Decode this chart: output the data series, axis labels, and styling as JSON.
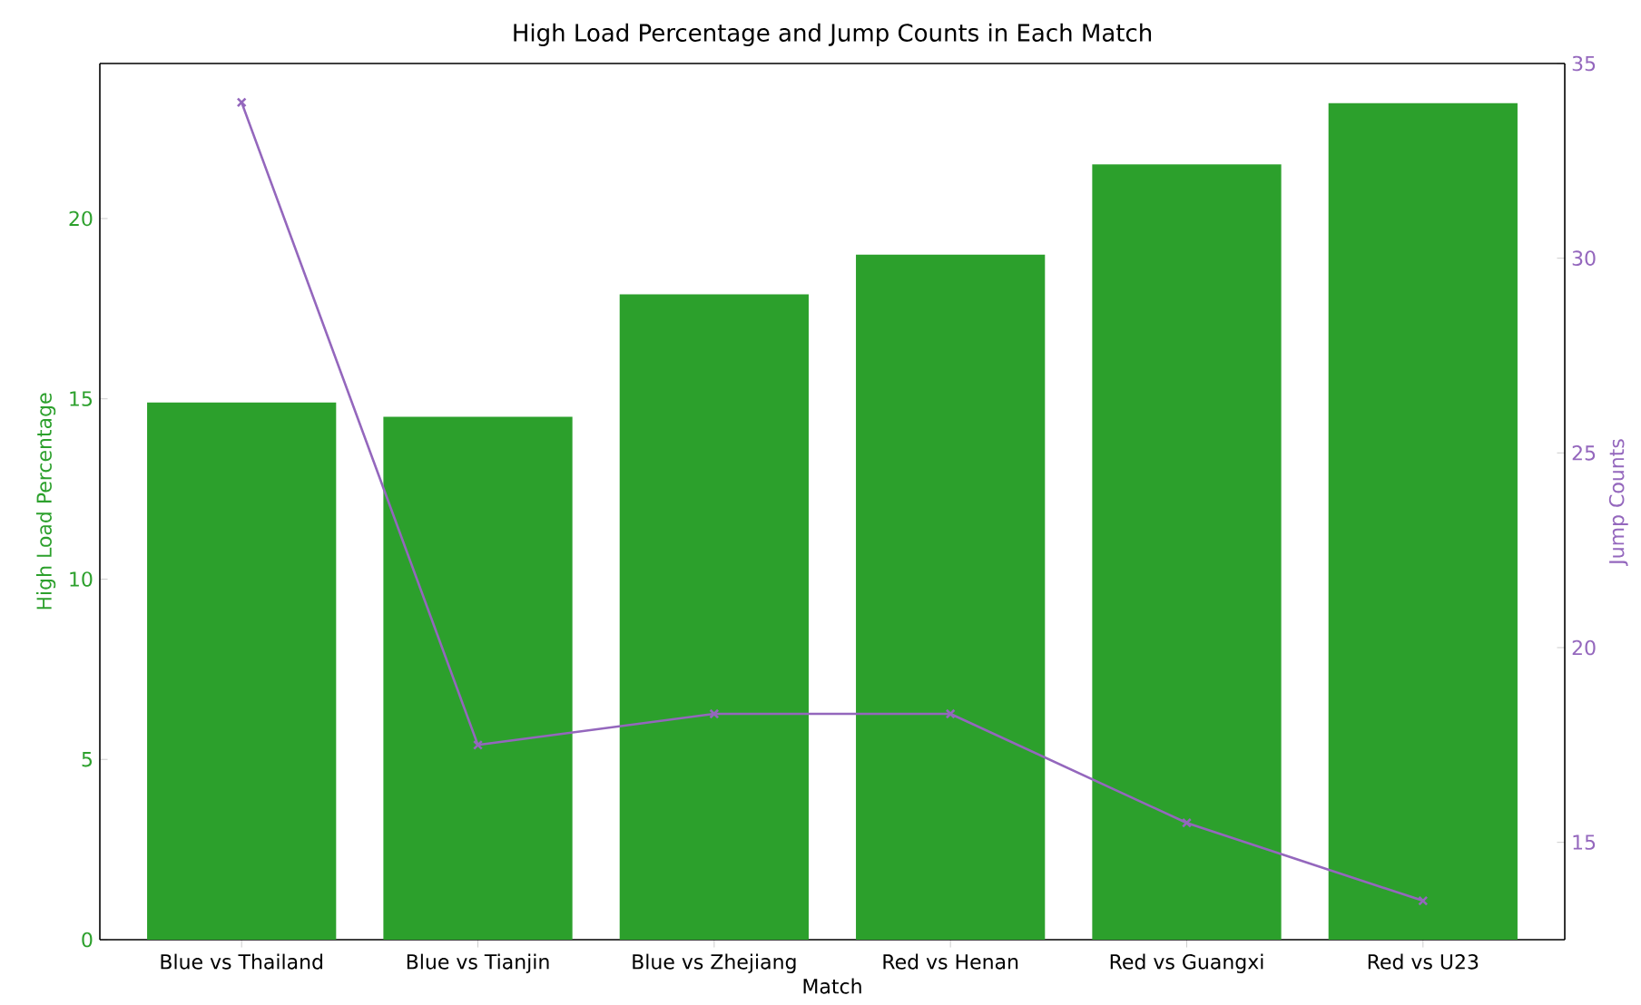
{
  "chart_data": {
    "type": "bar",
    "title": "High Load Percentage and Jump Counts in Each Match",
    "xlabel": "Match",
    "ylabel": "High Load Percentage",
    "y2label": "Jump Counts",
    "categories": [
      "Blue vs Thailand",
      "Blue vs Tianjin",
      "Blue vs Zhejiang",
      "Red vs Henan",
      "Red vs Guangxi",
      "Red vs U23"
    ],
    "series": [
      {
        "color": "#2ca02c",
        "values": [
          14.9,
          14.5,
          17.9,
          19.0,
          21.5,
          23.2
        ]
      },
      {
        "type": "line",
        "axis": "y2",
        "color": "#9467bd",
        "values": [
          34,
          17.5,
          18.3,
          18.3,
          15.5,
          13.5
        ]
      }
    ],
    "marker": "cross",
    "ylim": [
      0,
      24.3
    ],
    "yticks": [
      0,
      5,
      10,
      15,
      20
    ],
    "y2lim": [
      12.5,
      35
    ],
    "y2ticks": [
      15,
      20,
      25,
      30,
      35
    ]
  }
}
